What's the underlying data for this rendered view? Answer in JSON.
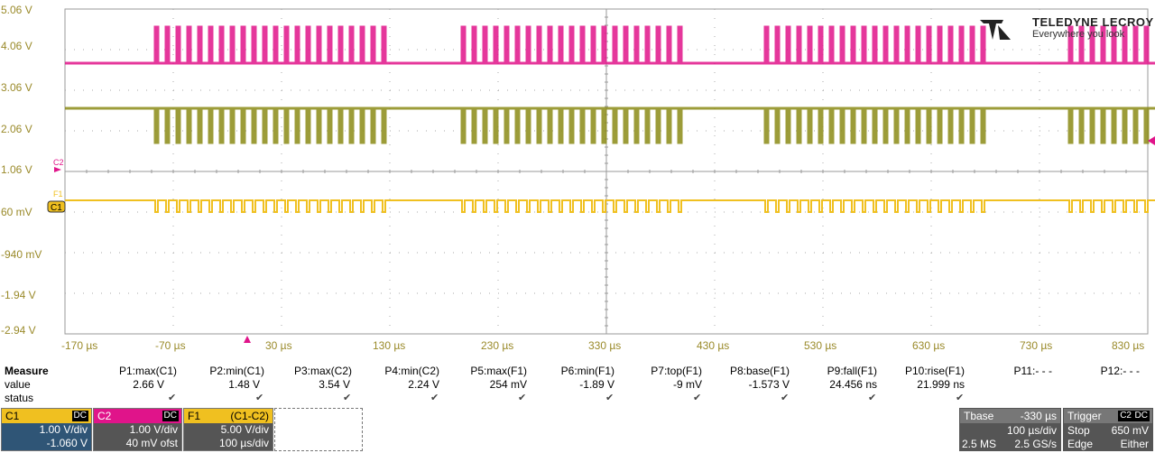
{
  "brand": {
    "name": "TELEDYNE LECROY",
    "tagline": "Everywhere you look"
  },
  "y_axis_labels": [
    "5.06 V",
    "4.06 V",
    "3.06 V",
    "2.06 V",
    "1.06 V",
    "60 mV",
    "-940 mV",
    "-1.94 V",
    "-2.94 V"
  ],
  "x_axis_labels": [
    "-170 µs",
    "-70 µs",
    "30 µs",
    "130 µs",
    "230 µs",
    "330 µs",
    "430 µs",
    "530 µs",
    "630 µs",
    "730 µs",
    "830 µs"
  ],
  "trace_tags": {
    "c2": "C2",
    "f1": "F1",
    "c1": "C1"
  },
  "colors": {
    "c1": "#f0c020",
    "c2": "#e0148a",
    "f1": "#f0c020",
    "c1_trace": "#8b8b16",
    "grid": "#a0a0a0",
    "axis_label": "#9a8a2a"
  },
  "measure": {
    "title": "Measure",
    "row_labels": [
      "value",
      "status"
    ],
    "columns": [
      {
        "name": "P1:max(C1)",
        "value": "2.66 V",
        "ok": true
      },
      {
        "name": "P2:min(C1)",
        "value": "1.48 V",
        "ok": true
      },
      {
        "name": "P3:max(C2)",
        "value": "3.54 V",
        "ok": true
      },
      {
        "name": "P4:min(C2)",
        "value": "2.24 V",
        "ok": true
      },
      {
        "name": "P5:max(F1)",
        "value": "254 mV",
        "ok": true
      },
      {
        "name": "P6:min(F1)",
        "value": "-1.89 V",
        "ok": true
      },
      {
        "name": "P7:top(F1)",
        "value": "-9 mV",
        "ok": true
      },
      {
        "name": "P8:base(F1)",
        "value": "-1.573 V",
        "ok": true
      },
      {
        "name": "P9:fall(F1)",
        "value": "24.456 ns",
        "ok": true
      },
      {
        "name": "P10:rise(F1)",
        "value": "21.999 ns",
        "ok": true
      },
      {
        "name": "P11:- - -",
        "value": "",
        "ok": false
      },
      {
        "name": "P12:- - -",
        "value": "",
        "ok": false
      }
    ]
  },
  "channels": {
    "c1": {
      "label": "C1",
      "coupling": "DC",
      "scale": "1.00 V/div",
      "offset": "-1.060 V"
    },
    "c2": {
      "label": "C2",
      "coupling": "DC",
      "scale": "1.00 V/div",
      "offset": "40 mV ofst"
    },
    "f1": {
      "label": "F1",
      "formula": "(C1-C2)",
      "scale": "5.00 V/div",
      "timebase": "100 µs/div"
    }
  },
  "timebase": {
    "label": "Tbase",
    "delay": "-330 µs",
    "per_div": "100 µs/div",
    "samples": "2.5 MS",
    "rate": "2.5 GS/s"
  },
  "trigger": {
    "label": "Trigger",
    "source": "C2",
    "coupling": "DC",
    "mode": "Stop",
    "level": "650 mV",
    "type": "Edge",
    "slope": "Either"
  }
}
